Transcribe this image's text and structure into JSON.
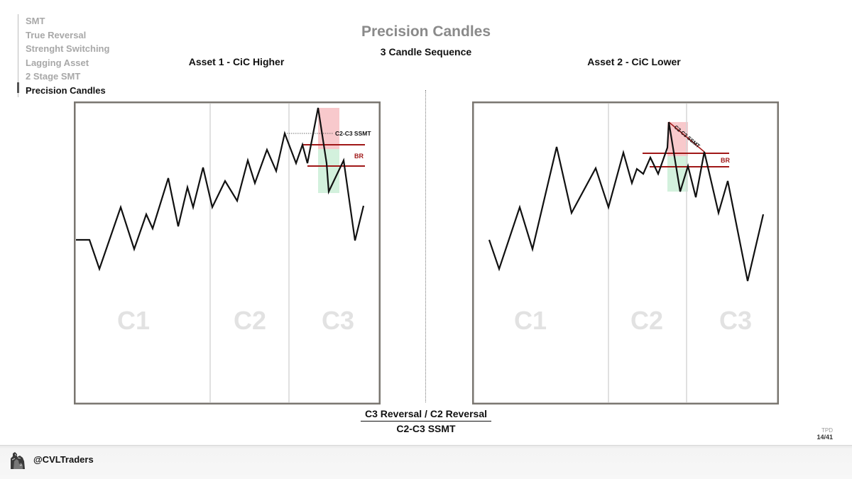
{
  "nav": {
    "items": [
      {
        "label": "SMT",
        "active": false
      },
      {
        "label": "True Reversal",
        "active": false
      },
      {
        "label": "Strenght Switching",
        "active": false
      },
      {
        "label": "Lagging Asset",
        "active": false
      },
      {
        "label": "2 Stage SMT",
        "active": false
      },
      {
        "label": "Precision Candles",
        "active": true
      }
    ]
  },
  "header": {
    "title": "Precision Candles",
    "subtitle": "3 Candle Sequence"
  },
  "panels": [
    {
      "title": "Asset 1 - CiC Higher",
      "candles": [
        "C1",
        "C2",
        "C3"
      ],
      "annotations": {
        "smt": "C2-C3 SSMT",
        "br": "BR"
      }
    },
    {
      "title": "Asset 2 - CiC Lower",
      "candles": [
        "C1",
        "C2",
        "C3"
      ],
      "annotations": {
        "smt": "C2-C3 SSMT",
        "br": "BR"
      }
    }
  ],
  "caption": {
    "top": "C3 Reversal / C2 Reversal",
    "bottom": "C2-C3 SSMT"
  },
  "page": {
    "code": "TPD",
    "number": "14/41"
  },
  "footer": {
    "handle": "@CVLTraders"
  },
  "colors": {
    "frame": "#7a7670",
    "br_line": "#a01818",
    "red_zone": "#f8c9cc",
    "green_zone": "#d3f1dd",
    "candle_label": "#e2e2e2",
    "title_gray": "#8a8a8a"
  }
}
